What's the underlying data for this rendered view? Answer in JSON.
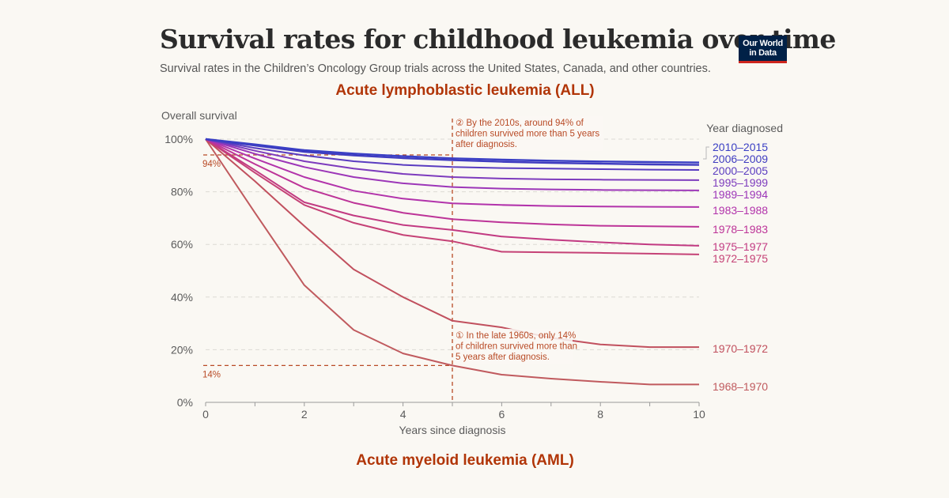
{
  "header": {
    "title": "Survival rates for childhood leukemia over time",
    "subtitle": "Survival rates in the Children’s Oncology Group trials across the United States, Canada, and other countries.",
    "logo_line1": "Our World",
    "logo_line2": "in Data",
    "section_all": "Acute lymphoblastic leukemia (ALL)",
    "section_aml": "Acute myeloid leukemia (AML)"
  },
  "colors": {
    "background": "#faf8f3",
    "annotation": "#b84a25",
    "logo_bg": "#002147",
    "logo_accent": "#ce261e",
    "section_title": "#b13507"
  },
  "chart_data": {
    "type": "line",
    "title": "Acute lymphoblastic leukemia (ALL)",
    "xlabel": "Years since diagnosis",
    "ylabel": "Overall survival",
    "legend_title": "Year diagnosed",
    "legend_placement": "right (direct labels)",
    "xlim": [
      0,
      10
    ],
    "ylim": [
      0,
      100
    ],
    "x_ticks": [
      0,
      2,
      4,
      6,
      8,
      10
    ],
    "x_minor_ticks": [
      1,
      3,
      5,
      7,
      9
    ],
    "y_ticks": [
      0,
      20,
      40,
      60,
      80,
      100
    ],
    "y_tick_labels": [
      "0%",
      "20%",
      "40%",
      "60%",
      "80%",
      "100%"
    ],
    "grid": "horizontal dashed",
    "x": [
      0,
      1,
      2,
      3,
      4,
      5,
      6,
      7,
      8,
      9,
      10
    ],
    "series": [
      {
        "name": "2010–2015",
        "color": "#3a3fc4",
        "values": [
          100,
          98,
          95.8,
          94.5,
          93.5,
          92.7,
          92.2,
          91.8,
          91.5,
          91.3,
          91.1
        ]
      },
      {
        "name": "2006–2009",
        "color": "#3f3cc0",
        "values": [
          100,
          97.6,
          95.2,
          93.8,
          92.8,
          92.0,
          91.4,
          91.0,
          90.7,
          90.4,
          90.2
        ]
      },
      {
        "name": "2000–2005",
        "color": "#5a3cc0",
        "values": [
          100,
          96.6,
          93.8,
          91.6,
          90.2,
          89.4,
          89.0,
          88.8,
          88.6,
          88.4,
          88.3
        ]
      },
      {
        "name": "1995–1999",
        "color": "#7d3bbd",
        "values": [
          100,
          95.6,
          91.6,
          88.8,
          86.8,
          85.6,
          85.0,
          84.7,
          84.6,
          84.5,
          84.4
        ]
      },
      {
        "name": "1989–1994",
        "color": "#9c36b8",
        "values": [
          100,
          94.4,
          89.4,
          85.6,
          83.2,
          81.8,
          81.2,
          80.9,
          80.7,
          80.6,
          80.5
        ]
      },
      {
        "name": "1983–1988",
        "color": "#b233ab",
        "values": [
          100,
          92.6,
          85.6,
          80.4,
          77.4,
          75.6,
          75.0,
          74.6,
          74.4,
          74.3,
          74.2
        ]
      },
      {
        "name": "1978–1983",
        "color": "#bd3498",
        "values": [
          100,
          90.5,
          81.5,
          75.8,
          72.0,
          69.6,
          68.4,
          67.6,
          67.1,
          66.9,
          66.7
        ]
      },
      {
        "name": "1975–1977",
        "color": "#c23a82",
        "values": [
          100,
          88.2,
          76.0,
          71.0,
          67.4,
          65.5,
          63.0,
          61.8,
          60.8,
          60.0,
          59.5
        ]
      },
      {
        "name": "1972–1975",
        "color": "#c54276",
        "values": [
          100,
          87.2,
          75.0,
          68.2,
          63.6,
          61.2,
          57.2,
          57.0,
          56.8,
          56.5,
          56.2
        ]
      },
      {
        "name": "1970–1972",
        "color": "#c1505e",
        "values": [
          100,
          84.0,
          67.0,
          50.5,
          40.0,
          31.0,
          28.5,
          24.5,
          22.0,
          21.0,
          21.0
        ]
      },
      {
        "name": "1968–1970",
        "color": "#c05a5e",
        "values": [
          100,
          72.0,
          44.5,
          27.5,
          18.6,
          14.0,
          10.5,
          9.0,
          7.8,
          6.8,
          6.8
        ]
      }
    ],
    "reference_lines": [
      {
        "y": 94,
        "label": "94%"
      },
      {
        "y": 14,
        "label": "14%"
      },
      {
        "x": 5
      }
    ],
    "annotations": [
      {
        "id": "2",
        "marker": "②",
        "lines": [
          "By the 2010s, around 94% of",
          "children survived more than 5 years",
          "after diagnosis."
        ]
      },
      {
        "id": "1",
        "marker": "①",
        "lines": [
          "In the late 1960s, only 14%",
          "of children survived more than",
          "5 years after diagnosis."
        ]
      }
    ]
  }
}
